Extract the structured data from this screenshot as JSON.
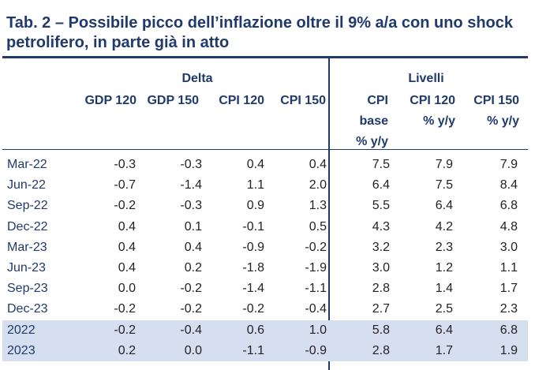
{
  "title": "Tab. 2 – Possibile picco dell’inflazione oltre il 9% a/a con uno shock petrolifero, in parte già in atto",
  "groups": {
    "delta": "Delta",
    "livelli": "Livelli"
  },
  "headers": {
    "gdp120": "GDP 120",
    "gdp150": "GDP 150",
    "cpi120": "CPI 120",
    "cpi150": "CPI 150",
    "cpibase_1": "CPI",
    "cpibase_2": "base",
    "cpibase_3": "% y/y",
    "lcpi120_1": "CPI 120",
    "lcpi120_2": "% y/y",
    "lcpi150_1": "CPI 150",
    "lcpi150_2": "% y/y"
  },
  "rows": [
    {
      "label": "Mar-22",
      "v": [
        "-0.3",
        "-0.3",
        "0.4",
        "0.4",
        "7.5",
        "7.9",
        "7.9"
      ]
    },
    {
      "label": "Jun-22",
      "v": [
        "-0.7",
        "-1.4",
        "1.1",
        "2.0",
        "6.4",
        "7.5",
        "8.4"
      ]
    },
    {
      "label": "Sep-22",
      "v": [
        "-0.2",
        "-0.3",
        "0.9",
        "1.3",
        "5.5",
        "6.4",
        "6.8"
      ]
    },
    {
      "label": "Dec-22",
      "v": [
        "0.4",
        "0.1",
        "-0.1",
        "0.5",
        "4.3",
        "4.2",
        "4.8"
      ]
    },
    {
      "label": "Mar-23",
      "v": [
        "0.4",
        "0.4",
        "-0.9",
        "-0.2",
        "3.2",
        "2.3",
        "3.0"
      ]
    },
    {
      "label": "Jun-23",
      "v": [
        "0.4",
        "0.2",
        "-1.8",
        "-1.9",
        "3.0",
        "1.2",
        "1.1"
      ]
    },
    {
      "label": "Sep-23",
      "v": [
        "0.0",
        "-0.2",
        "-1.4",
        "-1.1",
        "2.8",
        "1.4",
        "1.7"
      ]
    },
    {
      "label": "Dec-23",
      "v": [
        "-0.2",
        "-0.2",
        "-0.2",
        "-0.4",
        "2.7",
        "2.5",
        "2.3"
      ]
    },
    {
      "label": "2022",
      "v": [
        "-0.2",
        "-0.4",
        "0.6",
        "1.0",
        "5.8",
        "6.4",
        "6.8"
      ]
    },
    {
      "label": "2023",
      "v": [
        "0.2",
        "0.0",
        "-1.1",
        "-0.9",
        "2.8",
        "1.7",
        "1.9"
      ]
    }
  ]
}
